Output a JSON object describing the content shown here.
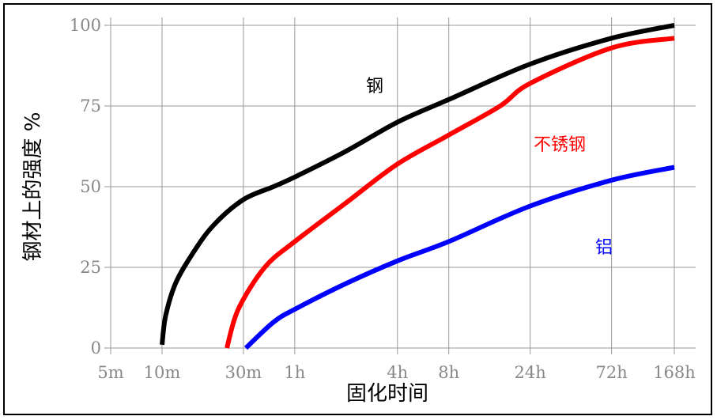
{
  "chart_data": {
    "type": "line",
    "xlabel": "固化时间",
    "ylabel": "钢材上的强度 %",
    "x_scale": "log",
    "x_ticks": [
      {
        "label": "5m",
        "minutes": 5
      },
      {
        "label": "10m",
        "minutes": 10
      },
      {
        "label": "30m",
        "minutes": 30
      },
      {
        "label": "1h",
        "minutes": 60
      },
      {
        "label": "4h",
        "minutes": 240
      },
      {
        "label": "8h",
        "minutes": 480
      },
      {
        "label": "24h",
        "minutes": 1440
      },
      {
        "label": "72h",
        "minutes": 4320
      },
      {
        "label": "168h",
        "minutes": 10080
      }
    ],
    "y_ticks": [
      0,
      25,
      50,
      75,
      100
    ],
    "ylim": [
      0,
      100
    ],
    "grid": true,
    "series": [
      {
        "name": "钢",
        "color": "#000000",
        "points": [
          [
            10,
            1
          ],
          [
            10.5,
            10
          ],
          [
            12,
            20
          ],
          [
            15,
            29
          ],
          [
            20,
            38
          ],
          [
            30,
            46
          ],
          [
            45,
            50
          ],
          [
            60,
            53
          ],
          [
            120,
            61
          ],
          [
            240,
            70
          ],
          [
            480,
            77
          ],
          [
            1440,
            88
          ],
          [
            4320,
            96
          ],
          [
            10080,
            100
          ]
        ]
      },
      {
        "name": "不锈钢",
        "color": "#ff0000",
        "points": [
          [
            24,
            0
          ],
          [
            28,
            12
          ],
          [
            40,
            25
          ],
          [
            60,
            33
          ],
          [
            120,
            45
          ],
          [
            240,
            57
          ],
          [
            480,
            66
          ],
          [
            960,
            75
          ],
          [
            1440,
            82
          ],
          [
            4320,
            93
          ],
          [
            10080,
            96
          ]
        ]
      },
      {
        "name": "铝",
        "color": "#0000ff",
        "points": [
          [
            31,
            0
          ],
          [
            45,
            8
          ],
          [
            60,
            12
          ],
          [
            120,
            20
          ],
          [
            240,
            27
          ],
          [
            480,
            33
          ],
          [
            1440,
            44
          ],
          [
            4320,
            52
          ],
          [
            10080,
            56
          ]
        ]
      }
    ]
  }
}
